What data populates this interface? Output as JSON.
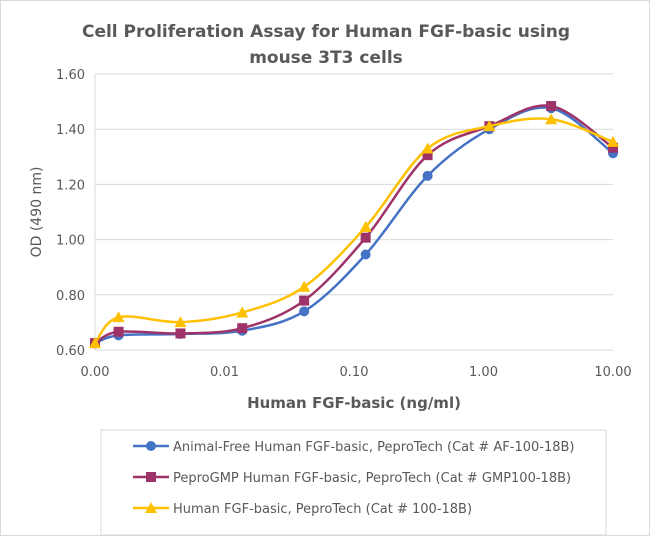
{
  "chart_data": {
    "type": "line",
    "title_lines": [
      "Cell Proliferation Assay for Human FGF-basic using",
      "mouse 3T3 cells"
    ],
    "xlabel": "Human FGF-basic (ng/ml)",
    "ylabel": "OD (490 nm)",
    "x_scale": "log",
    "xlim": [
      0.001,
      10
    ],
    "ylim": [
      0.6,
      1.6
    ],
    "x_tick_values": [
      0.001,
      0.01,
      0.1,
      1,
      10
    ],
    "x_tick_labels": [
      "0.00",
      "0.01",
      "0.10",
      "1.00",
      "10.00"
    ],
    "y_tick_values": [
      0.6,
      0.8,
      1.0,
      1.2,
      1.4,
      1.6
    ],
    "y_tick_labels": [
      "0.60",
      "0.80",
      "1.00",
      "1.20",
      "1.40",
      "1.60"
    ],
    "grid": "horizontal",
    "legend_position": "bottom",
    "x": [
      0.001,
      0.00152,
      0.00457,
      0.0137,
      0.0412,
      0.123,
      0.37,
      1.11,
      3.33,
      10
    ],
    "series": [
      {
        "name": "Animal-Free Human FGF-basic, PeproTech (Cat # AF-100-18B)",
        "color": "#4472C4",
        "marker": "circle",
        "values": [
          0.624,
          0.653,
          0.658,
          0.67,
          0.74,
          0.946,
          1.231,
          1.4,
          1.476,
          1.313
        ]
      },
      {
        "name": "PeproGMP Human FGF-basic, PeproTech (Cat # GMP100-18B)",
        "color": "#9E3369",
        "marker": "square",
        "values": [
          0.625,
          0.666,
          0.66,
          0.679,
          0.779,
          1.007,
          1.306,
          1.411,
          1.484,
          1.333
        ]
      },
      {
        "name": "Human FGF-basic, PeproTech (Cat # 100-18B)",
        "color": "#FFC000",
        "marker": "triangle",
        "values": [
          0.625,
          0.719,
          0.701,
          0.736,
          0.829,
          1.046,
          1.33,
          1.411,
          1.436,
          1.354
        ]
      }
    ]
  }
}
